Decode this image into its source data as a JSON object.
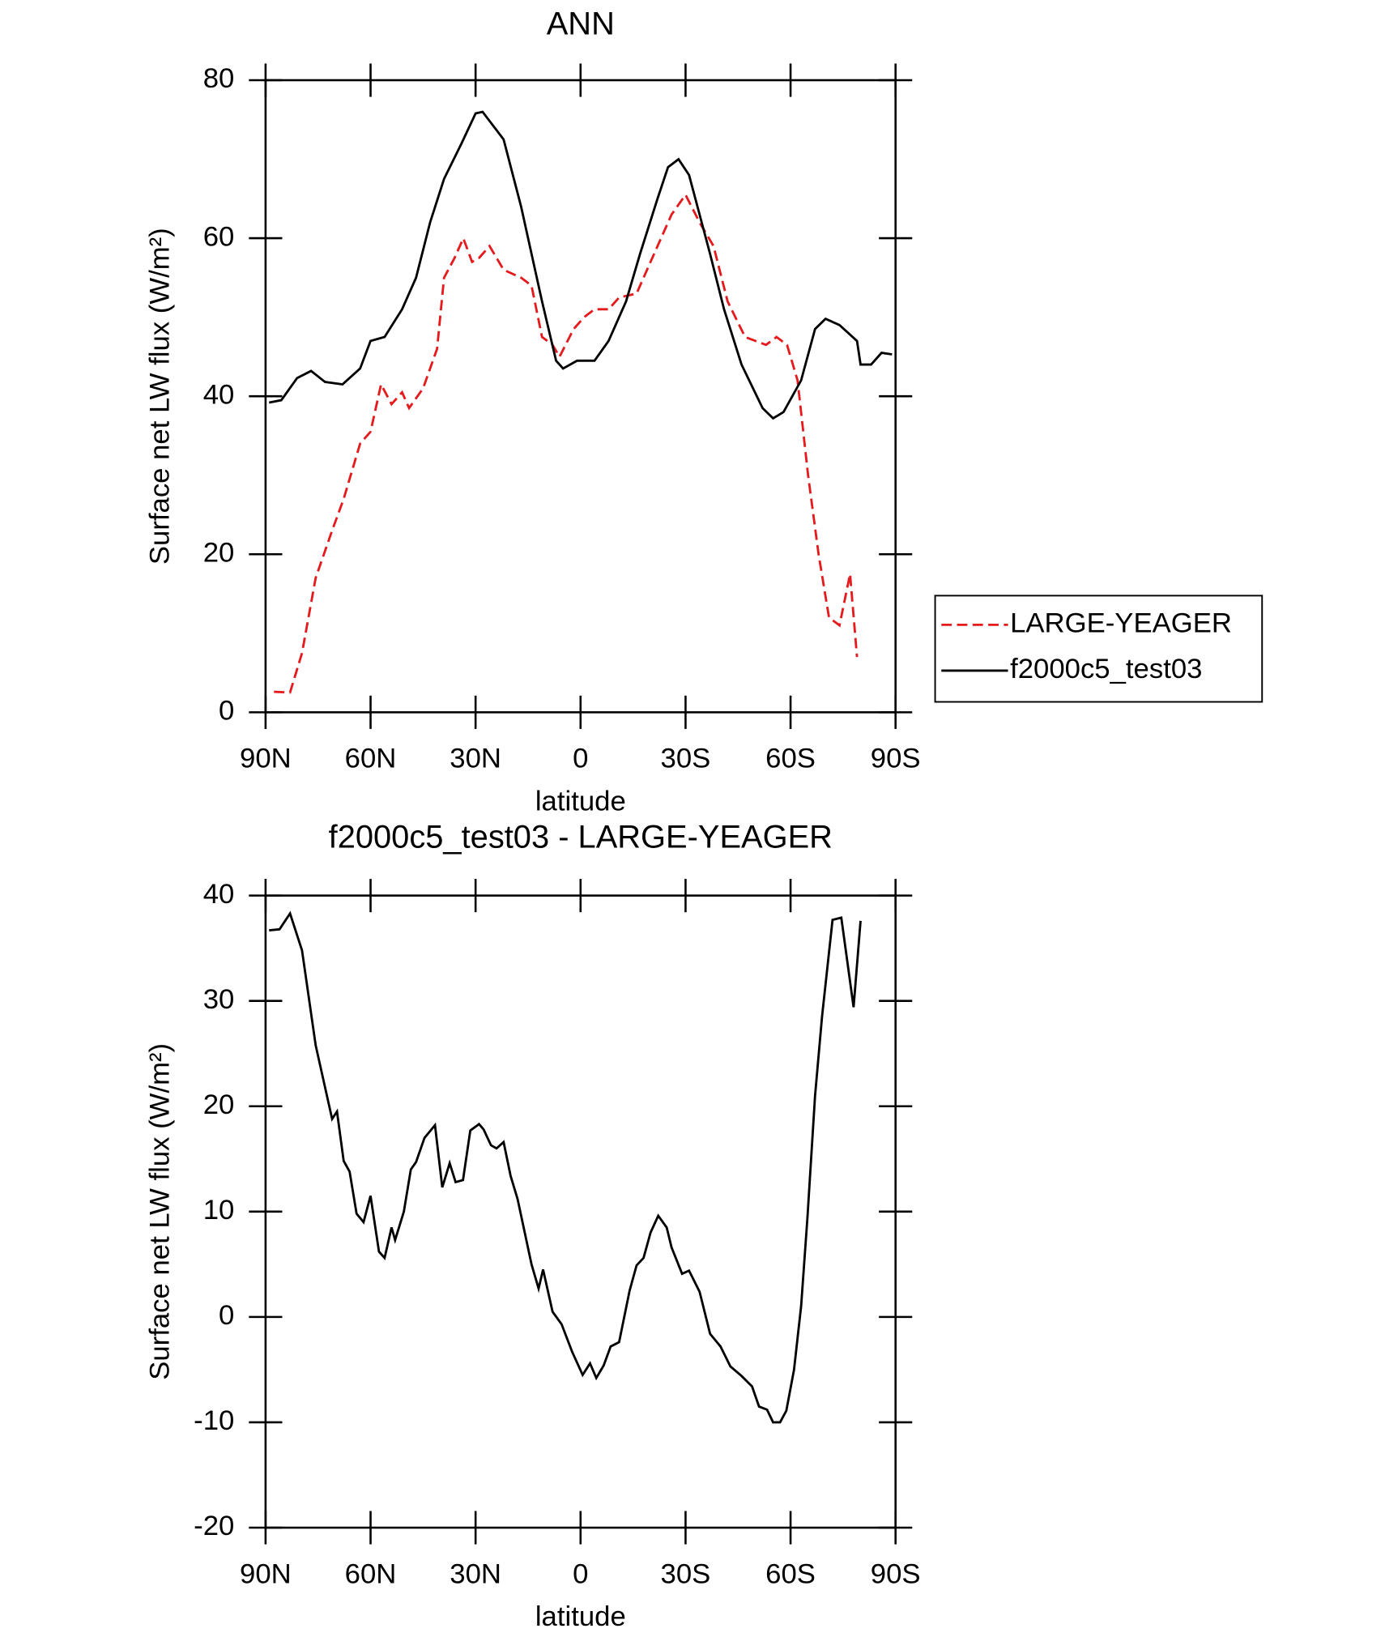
{
  "chart_data": [
    {
      "type": "line",
      "title": "ANN",
      "xlabel": "latitude",
      "ylabel": "Surface net LW flux (W/m²)",
      "xlim": [
        90,
        -90
      ],
      "ylim": [
        0,
        80
      ],
      "xticks": [
        {
          "value": 90,
          "label": "90N"
        },
        {
          "value": 60,
          "label": "60N"
        },
        {
          "value": 30,
          "label": "30N"
        },
        0,
        {
          "value": -30,
          "label": "30S"
        },
        {
          "value": -60,
          "label": "60S"
        },
        {
          "value": -90,
          "label": "90S"
        }
      ],
      "yticks": [
        0,
        20,
        40,
        60,
        80
      ],
      "legend": "right",
      "series": [
        {
          "name": "LARGE-YEAGER",
          "color": "#e41a1c",
          "dash": true,
          "x": [
            87.6,
            83,
            79.6,
            75.7,
            71,
            67.7,
            63,
            60,
            57,
            54,
            51,
            49,
            45,
            41,
            39,
            36,
            33.5,
            31,
            29,
            26,
            22,
            17,
            14,
            11,
            8,
            6,
            2,
            -1,
            -4,
            -8,
            -11,
            -16,
            -20,
            -26,
            -30,
            -34,
            -38,
            -42,
            -47,
            -53,
            -56,
            -59,
            -62,
            -65,
            -68,
            -71,
            -74,
            -77,
            -79
          ],
          "values": [
            2.6,
            2.5,
            7.5,
            17,
            23,
            27,
            34,
            35.5,
            41.5,
            39,
            40.5,
            38.5,
            41,
            46,
            55,
            57.5,
            60,
            57,
            57.5,
            59,
            56,
            55,
            54,
            47.5,
            46.5,
            45,
            48.5,
            50,
            51,
            51,
            52.5,
            53,
            57,
            63,
            65.5,
            62,
            59,
            52,
            47.5,
            46.5,
            47.5,
            46.5,
            42,
            30,
            20,
            12,
            11,
            17.5,
            7
          ]
        },
        {
          "name": "f2000c5_test03",
          "color": "#000000",
          "dash": false,
          "x": [
            89,
            85.5,
            81,
            77,
            73,
            68,
            63,
            60,
            56,
            51,
            47,
            43,
            39,
            34,
            30,
            28,
            22,
            17,
            11,
            7,
            5,
            1,
            -4,
            -8,
            -13,
            -17,
            -22,
            -25,
            -28,
            -31,
            -37,
            -41,
            -46,
            -52,
            -55,
            -58,
            -63,
            -67,
            -70,
            -74,
            -79,
            -80,
            -83,
            -86,
            -89
          ],
          "values": [
            39.2,
            39.5,
            42.3,
            43.2,
            41.8,
            41.5,
            43.5,
            47,
            47.5,
            51,
            55,
            62,
            67.5,
            72,
            75.8,
            76,
            72.5,
            64,
            52,
            44.5,
            43.5,
            44.5,
            44.5,
            47,
            52,
            58,
            65,
            69,
            70,
            68,
            58,
            51,
            44,
            38.5,
            37.2,
            38,
            42,
            48.5,
            49.8,
            49,
            47,
            44,
            44,
            45.5,
            45.3
          ]
        }
      ]
    },
    {
      "type": "line",
      "title": "f2000c5_test03 - LARGE-YEAGER",
      "xlabel": "latitude",
      "ylabel": "Surface net LW flux (W/m²)",
      "xlim": [
        90,
        -90
      ],
      "ylim": [
        -20,
        40
      ],
      "xticks": [
        {
          "value": 90,
          "label": "90N"
        },
        {
          "value": 60,
          "label": "60N"
        },
        {
          "value": 30,
          "label": "30N"
        },
        0,
        {
          "value": -30,
          "label": "30S"
        },
        {
          "value": -60,
          "label": "60S"
        },
        {
          "value": -90,
          "label": "90S"
        }
      ],
      "yticks": [
        -20,
        -10,
        0,
        10,
        20,
        30,
        40
      ],
      "series": [
        {
          "color": "#000000",
          "dash": false,
          "x": [
            89,
            86,
            83,
            79.6,
            75.7,
            71,
            69.6,
            67.7,
            66,
            64,
            62,
            60,
            57.6,
            56,
            54,
            53,
            50.5,
            48.5,
            47,
            44.6,
            41.6,
            39.5,
            37.4,
            35.7,
            33.6,
            31.5,
            29,
            27.7,
            25.6,
            24,
            22,
            20,
            18,
            14,
            12,
            10.7,
            8,
            5.4,
            2.4,
            -0.6,
            -2.7,
            -4.5,
            -6.6,
            -8.6,
            -11,
            -14,
            -16,
            -18,
            -20,
            -22.2,
            -24.6,
            -26,
            -29,
            -31,
            -34,
            -37,
            -40,
            -42.8,
            -46,
            -49,
            -51,
            -53.3,
            -55,
            -57,
            -58.8,
            -61,
            -63,
            -64.8,
            -67,
            -69,
            -72,
            -74.5,
            -78,
            -80
          ],
          "values": [
            36.7,
            36.8,
            38.3,
            34.8,
            25.8,
            18.8,
            19.5,
            14.8,
            13.8,
            9.8,
            9,
            11.5,
            6.2,
            5.6,
            8.5,
            7.3,
            10,
            14,
            14.7,
            17,
            18.2,
            12.3,
            14.6,
            12.8,
            13,
            17.7,
            18.3,
            17.8,
            16.3,
            16,
            16.6,
            13.4,
            11.2,
            5,
            2.7,
            4.5,
            0.5,
            -0.7,
            -3.3,
            -5.5,
            -4.4,
            -5.8,
            -4.6,
            -2.8,
            -2.4,
            2.5,
            4.9,
            5.6,
            8,
            9.6,
            8.5,
            6.6,
            4.1,
            4.4,
            2.4,
            -1.6,
            -2.8,
            -4.7,
            -5.6,
            -6.6,
            -8.5,
            -8.8,
            -10,
            -10,
            -8.9,
            -5,
            1,
            9.3,
            21,
            28.5,
            37.7,
            37.9,
            29.4,
            37.6
          ]
        }
      ]
    }
  ]
}
